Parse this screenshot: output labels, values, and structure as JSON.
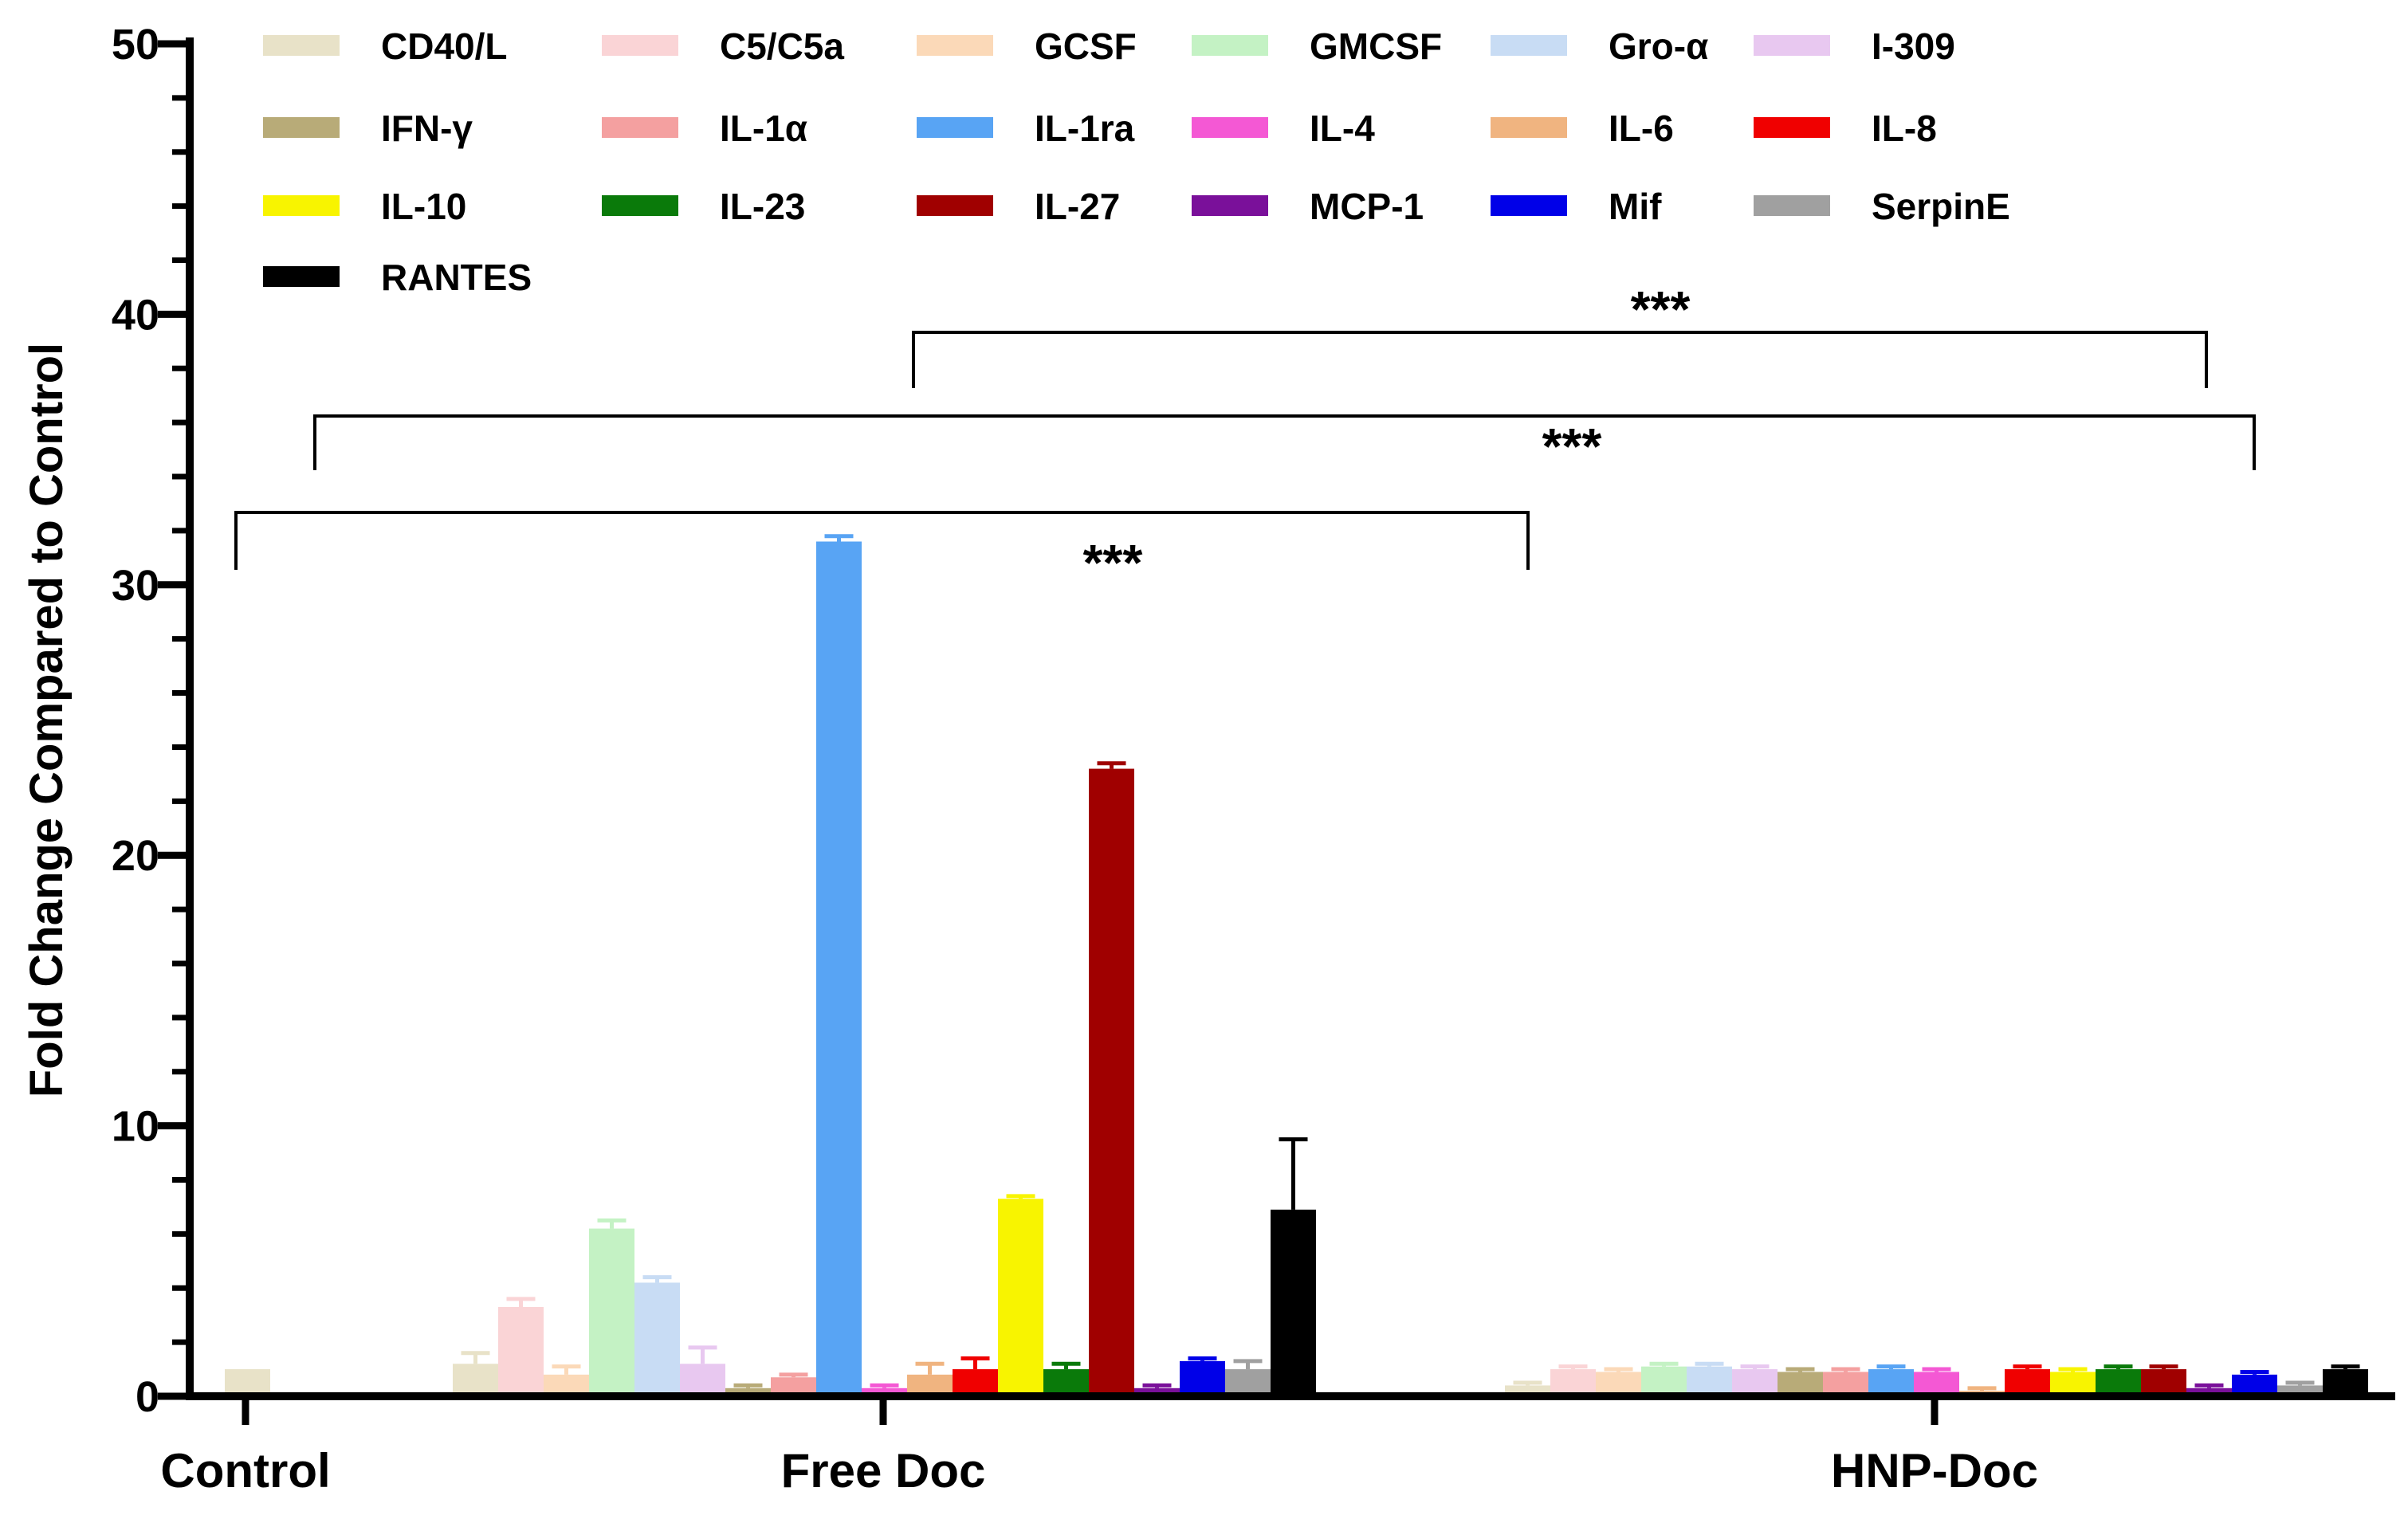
{
  "chart_data": {
    "type": "bar",
    "title": "",
    "xlabel": "",
    "ylabel": "Fold  Change Compared to  Control",
    "ylim": [
      0,
      50
    ],
    "yticks": [
      0,
      10,
      20,
      30,
      40,
      50
    ],
    "categories": [
      "Control",
      "Free Doc",
      "HNP-Doc"
    ],
    "series": [
      {
        "name": "CD40/L",
        "color": "#e8e2c8",
        "values": [
          1.0,
          1.2,
          0.4
        ],
        "errors": [
          0,
          0.4,
          0.1
        ]
      },
      {
        "name": "C5/C5a",
        "color": "#fad4d6",
        "values": [
          0,
          3.3,
          1.0
        ],
        "errors": [
          0,
          0.3,
          0.1
        ]
      },
      {
        "name": "GCSF",
        "color": "#fbd9b8",
        "values": [
          0,
          0.8,
          0.9
        ],
        "errors": [
          0,
          0.3,
          0.1
        ]
      },
      {
        "name": "GMCSF",
        "color": "#c4f2c4",
        "values": [
          0,
          6.2,
          1.1
        ],
        "errors": [
          0,
          0.3,
          0.1
        ]
      },
      {
        "name": "Gro-α",
        "color": "#c8dcf4",
        "values": [
          0,
          4.2,
          1.1
        ],
        "errors": [
          0,
          0.2,
          0.1
        ]
      },
      {
        "name": "I-309",
        "color": "#e8c8f0",
        "values": [
          0,
          1.2,
          1.0
        ],
        "errors": [
          0,
          0.6,
          0.1
        ]
      },
      {
        "name": "IFN-γ",
        "color": "#b8ab78",
        "values": [
          0,
          0.3,
          0.9
        ],
        "errors": [
          0,
          0.1,
          0.1
        ]
      },
      {
        "name": "IL-1α",
        "color": "#f4a0a0",
        "values": [
          0,
          0.7,
          0.9
        ],
        "errors": [
          0,
          0.1,
          0.1
        ]
      },
      {
        "name": "IL-1ra",
        "color": "#58a4f4",
        "values": [
          0,
          31.6,
          1.0
        ],
        "errors": [
          0,
          0.2,
          0.1
        ]
      },
      {
        "name": "IL-4",
        "color": "#f458d4",
        "values": [
          0,
          0.3,
          0.9
        ],
        "errors": [
          0,
          0.1,
          0.1
        ]
      },
      {
        "name": "IL-6",
        "color": "#f0b480",
        "values": [
          0,
          0.8,
          0.2
        ],
        "errors": [
          0,
          0.4,
          0.1
        ]
      },
      {
        "name": "IL-8",
        "color": "#f00000",
        "values": [
          0,
          1.0,
          1.0
        ],
        "errors": [
          0,
          0.4,
          0.1
        ]
      },
      {
        "name": "IL-10",
        "color": "#f8f400",
        "values": [
          0,
          7.3,
          0.9
        ],
        "errors": [
          0,
          0.1,
          0.1
        ]
      },
      {
        "name": "IL-23",
        "color": "#0a7a0a",
        "values": [
          0,
          1.0,
          1.0
        ],
        "errors": [
          0,
          0.2,
          0.1
        ]
      },
      {
        "name": "IL-27",
        "color": "#a00000",
        "values": [
          0,
          23.2,
          1.0
        ],
        "errors": [
          0,
          0.2,
          0.1
        ]
      },
      {
        "name": "MCP-1",
        "color": "#7a109a",
        "values": [
          0,
          0.3,
          0.3
        ],
        "errors": [
          0,
          0.1,
          0.1
        ]
      },
      {
        "name": "Mif",
        "color": "#0000e8",
        "values": [
          0,
          1.3,
          0.8
        ],
        "errors": [
          0,
          0.1,
          0.1
        ]
      },
      {
        "name": "SerpinE",
        "color": "#a0a0a0",
        "values": [
          0,
          1.0,
          0.4
        ],
        "errors": [
          0,
          0.3,
          0.1
        ]
      },
      {
        "name": "RANTES",
        "color": "#000000",
        "values": [
          0,
          6.9,
          1.0
        ],
        "errors": [
          0,
          2.6,
          0.1
        ]
      }
    ],
    "significance": [
      {
        "from": "Free Doc",
        "to": "HNP-Doc",
        "label": "***"
      },
      {
        "from": "Control",
        "to": "HNP-Doc",
        "label": "***"
      },
      {
        "from": "Control",
        "to": "Free Doc",
        "label": "***"
      }
    ],
    "legend_position": "top"
  }
}
